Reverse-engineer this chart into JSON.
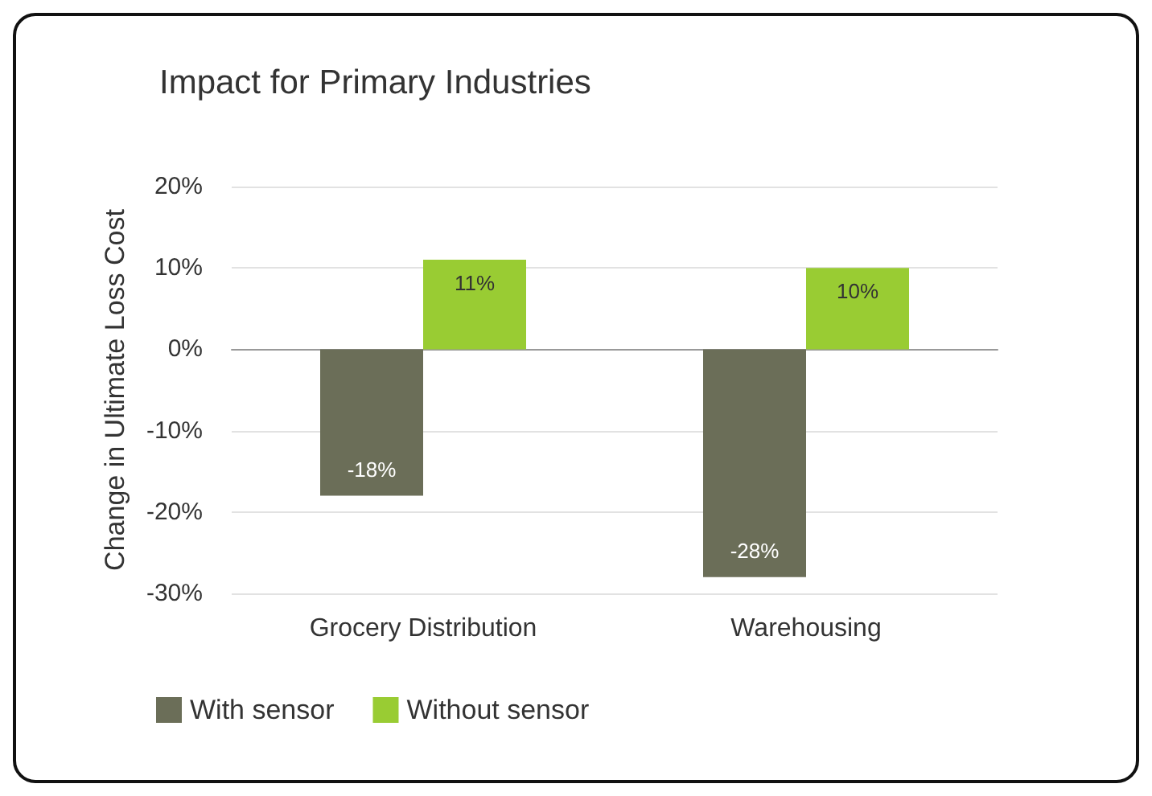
{
  "chart_data": {
    "type": "bar",
    "title": "Impact for Primary Industries",
    "ylabel": "Change in Ultimate Loss Cost",
    "categories": [
      "Grocery Distribution",
      "Warehousing"
    ],
    "series": [
      {
        "name": "With sensor",
        "color": "#6b6e58",
        "values": [
          -18,
          -28
        ],
        "value_labels": [
          "-18%",
          "-28%"
        ]
      },
      {
        "name": "Without sensor",
        "color": "#99cc33",
        "values": [
          11,
          10
        ],
        "value_labels": [
          "11%",
          "10%"
        ]
      }
    ],
    "ylim": [
      -30,
      20
    ],
    "yticks": [
      {
        "value": -30,
        "label": "-30%"
      },
      {
        "value": -20,
        "label": "-20%"
      },
      {
        "value": -10,
        "label": "-10%"
      },
      {
        "value": 0,
        "label": "0%"
      },
      {
        "value": 10,
        "label": "10%"
      },
      {
        "value": 20,
        "label": "20%"
      }
    ],
    "grid": "y",
    "legend": "bottom left"
  }
}
